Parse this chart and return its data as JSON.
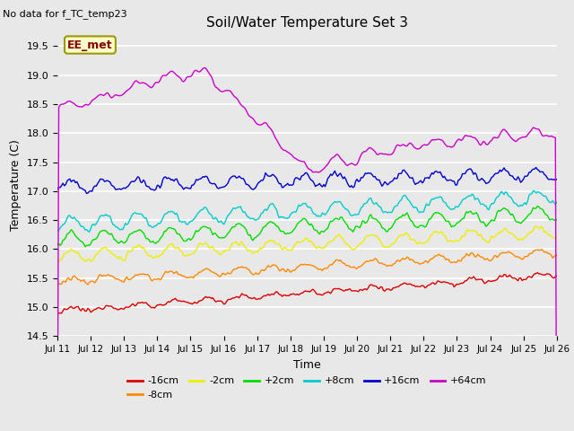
{
  "title": "Soil/Water Temperature Set 3",
  "xlabel": "Time",
  "ylabel": "Temperature (C)",
  "ylim": [
    14.5,
    19.7
  ],
  "xlim": [
    0,
    360
  ],
  "plot_bg": "#e8e8e8",
  "annotation_text": "No data for f_TC_temp23",
  "legend_box_text": "EE_met",
  "xtick_labels": [
    "Jul 11",
    "Jul 12",
    "Jul 13",
    "Jul 14",
    "Jul 15",
    "Jul 16",
    "Jul 17",
    "Jul 18",
    "Jul 19",
    "Jul 20",
    "Jul 21",
    "Jul 22",
    "Jul 23",
    "Jul 24",
    "Jul 25",
    "Jul 26"
  ],
  "ytick_values": [
    14.5,
    15.0,
    15.5,
    16.0,
    16.5,
    17.0,
    17.5,
    18.0,
    18.5,
    19.0,
    19.5
  ],
  "series": [
    {
      "label": "-16cm",
      "color": "#dd0000",
      "base": 14.93,
      "trend": 0.00175,
      "amp": 0.04,
      "noise": 0.025,
      "phase": 1.5
    },
    {
      "label": "-8cm",
      "color": "#ff8800",
      "base": 15.44,
      "trend": 0.0014,
      "amp": 0.06,
      "noise": 0.025,
      "phase": 1.3
    },
    {
      "label": "-2cm",
      "color": "#eeee00",
      "base": 15.87,
      "trend": 0.0012,
      "amp": 0.1,
      "noise": 0.03,
      "phase": 1.1
    },
    {
      "label": "+2cm",
      "color": "#00dd00",
      "base": 16.15,
      "trend": 0.0013,
      "amp": 0.12,
      "noise": 0.03,
      "phase": 1.0
    },
    {
      "label": "+8cm",
      "color": "#00cccc",
      "base": 16.42,
      "trend": 0.00135,
      "amp": 0.12,
      "noise": 0.03,
      "phase": 0.9
    },
    {
      "label": "+16cm",
      "color": "#0000cc",
      "base": 17.08,
      "trend": 0.0006,
      "amp": 0.1,
      "noise": 0.04,
      "phase": 0.8
    },
    {
      "label": "+64cm",
      "color": "#cc00cc",
      "base": 18.58,
      "trend": 0.0,
      "amp": 0.08,
      "noise": 0.05,
      "phase": 0.5
    }
  ],
  "n_points": 361
}
